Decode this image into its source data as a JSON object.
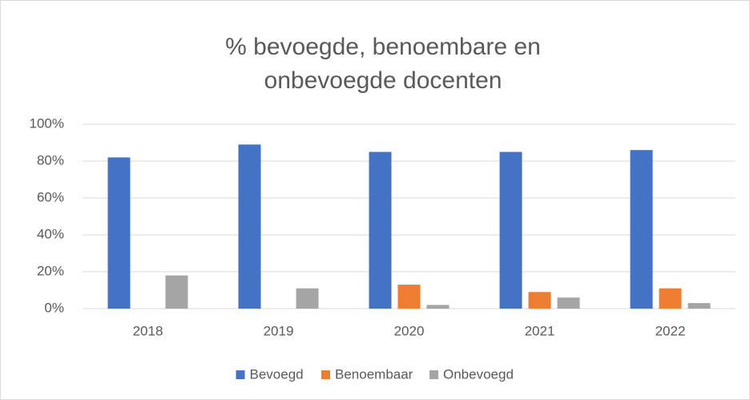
{
  "chart_data": {
    "type": "bar",
    "title": [
      "% bevoegde, benoembare en",
      "onbevoegde docenten"
    ],
    "categories": [
      "2018",
      "2019",
      "2020",
      "2021",
      "2022"
    ],
    "series": [
      {
        "name": "Bevoegd",
        "color": "#4472c4",
        "values": [
          82,
          89,
          85,
          85,
          86
        ]
      },
      {
        "name": "Benoembaar",
        "color": "#ed7d31",
        "values": [
          0,
          0,
          13,
          9,
          11
        ]
      },
      {
        "name": "Onbevoegd",
        "color": "#a5a5a5",
        "values": [
          18,
          11,
          2,
          6,
          3
        ]
      }
    ],
    "ylim": [
      0,
      100
    ],
    "yticks": [
      {
        "value": 0,
        "label": "0%"
      },
      {
        "value": 20,
        "label": "20%"
      },
      {
        "value": 40,
        "label": "40%"
      },
      {
        "value": 60,
        "label": "60%"
      },
      {
        "value": 80,
        "label": "80%"
      },
      {
        "value": 100,
        "label": "100%"
      }
    ],
    "grid": true,
    "legend": "bottom"
  }
}
